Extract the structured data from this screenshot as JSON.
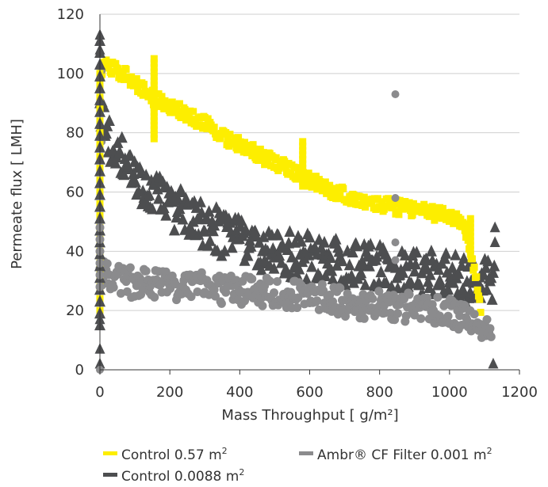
{
  "chart_data": {
    "type": "scatter",
    "xlabel": "Mass Throughput [ g/m²]",
    "ylabel": "Permeate flux [ LMH]",
    "xlim": [
      0,
      1200
    ],
    "ylim": [
      0,
      120
    ],
    "x_ticks": [
      "0",
      "200",
      "400",
      "600",
      "800",
      "1000",
      "1200"
    ],
    "y_ticks": [
      "0",
      "20",
      "40",
      "60",
      "80",
      "100",
      "120"
    ],
    "grid": "horizontal",
    "legend_position": "bottom",
    "series": [
      {
        "name": "Control 0.57 m²",
        "legend_base": "Control 0.57 m",
        "legend_sup": "2",
        "color": "#fdee00",
        "marker": "square",
        "points": [
          [
            0,
            100
          ],
          [
            20,
            103
          ],
          [
            50,
            101
          ],
          [
            100,
            97
          ],
          [
            150,
            92
          ],
          [
            200,
            89
          ],
          [
            250,
            86
          ],
          [
            300,
            83
          ],
          [
            350,
            79
          ],
          [
            400,
            76
          ],
          [
            450,
            73
          ],
          [
            500,
            70
          ],
          [
            550,
            67
          ],
          [
            600,
            64
          ],
          [
            650,
            61
          ],
          [
            700,
            59
          ],
          [
            750,
            57
          ],
          [
            800,
            56
          ],
          [
            850,
            55
          ],
          [
            900,
            54
          ],
          [
            950,
            53
          ],
          [
            1000,
            52
          ],
          [
            1030,
            51
          ],
          [
            1050,
            45
          ],
          [
            1070,
            35
          ],
          [
            1080,
            27
          ],
          [
            1090,
            20
          ]
        ]
      },
      {
        "name": "Ambr® CF Filter 0.001 m²",
        "legend_base": "Ambr® CF Filter 0.001 m",
        "legend_sup": "2",
        "color": "#8b8b8d",
        "marker": "circle",
        "points": [
          [
            0,
            32
          ],
          [
            50,
            31
          ],
          [
            100,
            29
          ],
          [
            150,
            29
          ],
          [
            200,
            28
          ],
          [
            250,
            28
          ],
          [
            300,
            28
          ],
          [
            350,
            27
          ],
          [
            400,
            27
          ],
          [
            450,
            26
          ],
          [
            500,
            26
          ],
          [
            550,
            25
          ],
          [
            600,
            25
          ],
          [
            650,
            24
          ],
          [
            700,
            23
          ],
          [
            750,
            22
          ],
          [
            800,
            22
          ],
          [
            850,
            21
          ],
          [
            900,
            21
          ],
          [
            950,
            20
          ],
          [
            1000,
            19
          ],
          [
            1050,
            17
          ],
          [
            1100,
            14
          ],
          [
            1120,
            11
          ]
        ]
      },
      {
        "name": "Control 0.0088 m²",
        "legend_base": "Control 0.0088 m",
        "legend_sup": "2",
        "color": "#4d4e50",
        "marker": "triangle",
        "points": [
          [
            0,
            85
          ],
          [
            20,
            80
          ],
          [
            50,
            73
          ],
          [
            100,
            66
          ],
          [
            150,
            60
          ],
          [
            200,
            55
          ],
          [
            250,
            52
          ],
          [
            300,
            49
          ],
          [
            350,
            46
          ],
          [
            400,
            44
          ],
          [
            450,
            42
          ],
          [
            500,
            40
          ],
          [
            550,
            39
          ],
          [
            600,
            38
          ],
          [
            650,
            37
          ],
          [
            700,
            36
          ],
          [
            750,
            35
          ],
          [
            800,
            34
          ],
          [
            850,
            33
          ],
          [
            900,
            33
          ],
          [
            950,
            32
          ],
          [
            1000,
            31
          ],
          [
            1050,
            30
          ],
          [
            1100,
            30
          ],
          [
            1130,
            30
          ]
        ]
      }
    ],
    "outliers": [
      {
        "series": 1,
        "x": 5,
        "y": 101
      },
      {
        "series": 1,
        "x": 5,
        "y": 77
      },
      {
        "series": 1,
        "x": 845,
        "y": 93
      },
      {
        "series": 1,
        "x": 845,
        "y": 58
      },
      {
        "series": 1,
        "x": 845,
        "y": 43
      },
      {
        "series": 1,
        "x": 845,
        "y": 37
      },
      {
        "series": 2,
        "x": 0,
        "y": 113
      },
      {
        "series": 2,
        "x": 0,
        "y": 108
      },
      {
        "series": 2,
        "x": 0,
        "y": 2
      },
      {
        "series": 2,
        "x": 0,
        "y": 7
      },
      {
        "series": 2,
        "x": 0,
        "y": 17
      },
      {
        "series": 2,
        "x": 1125,
        "y": 2
      },
      {
        "series": 2,
        "x": 1130,
        "y": 48
      },
      {
        "series": 2,
        "x": 1130,
        "y": 43
      },
      {
        "series": 1,
        "x": 0,
        "y": 0
      }
    ],
    "spikes": [
      {
        "series": 0,
        "x": 155,
        "y_from": 78,
        "y_to": 106
      },
      {
        "series": 0,
        "x": 580,
        "y_from": 62,
        "y_to": 77
      },
      {
        "series": 0,
        "x": 1060,
        "y_from": 39,
        "y_to": 52
      }
    ]
  }
}
